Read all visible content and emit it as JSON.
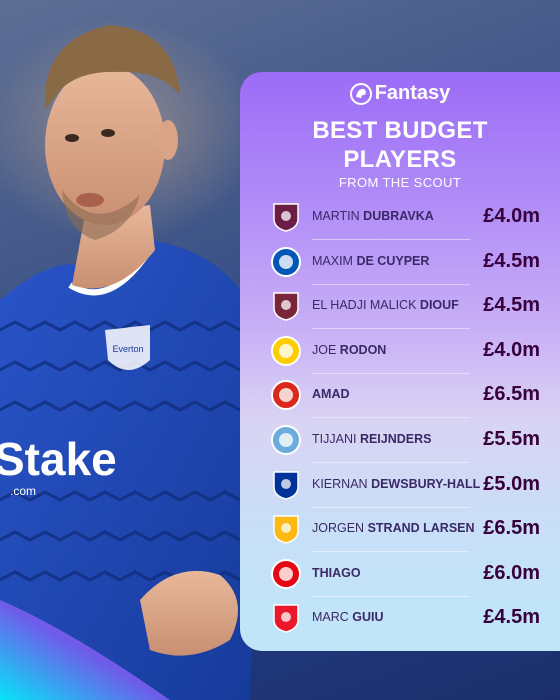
{
  "brand": {
    "label": "Fantasy"
  },
  "heading": {
    "line1": "BEST BUDGET",
    "line2": "PLAYERS",
    "subtitle": "FROM THE SCOUT"
  },
  "shirt": {
    "sponsor": "Stake",
    "sponsor_suffix": ".com",
    "club_text": "Everton"
  },
  "players": [
    {
      "first": "MARTIN",
      "last": "DUBRAVKA",
      "price": "£4.0m",
      "crest": "burnley-crest-icon",
      "color": "#6c1d45"
    },
    {
      "first": "MAXIM",
      "last": "DE CUYPER",
      "price": "£4.5m",
      "crest": "brighton-crest-icon",
      "color": "#0057b8"
    },
    {
      "first": "EL HADJI MALICK",
      "last": "DIOUF",
      "price": "£4.5m",
      "crest": "west-ham-crest-icon",
      "color": "#7a263a"
    },
    {
      "first": "JOE",
      "last": "RODON",
      "price": "£4.0m",
      "crest": "leeds-crest-icon",
      "color": "#ffcd00"
    },
    {
      "first": "",
      "last": "AMAD",
      "price": "£6.5m",
      "crest": "man-utd-crest-icon",
      "color": "#da291c"
    },
    {
      "first": "TIJJANI",
      "last": "REIJNDERS",
      "price": "£5.5m",
      "crest": "man-city-crest-icon",
      "color": "#6cabdd"
    },
    {
      "first": "KIERNAN",
      "last": "DEWSBURY-HALL",
      "price": "£5.0m",
      "crest": "everton-crest-icon",
      "color": "#003399"
    },
    {
      "first": "JORGEN",
      "last": "STRAND LARSEN",
      "price": "£6.5m",
      "crest": "wolves-crest-icon",
      "color": "#fdb913"
    },
    {
      "first": "",
      "last": "THIAGO",
      "price": "£6.0m",
      "crest": "brentford-crest-icon",
      "color": "#e30613"
    },
    {
      "first": "MARC",
      "last": "GUIU",
      "price": "£4.5m",
      "crest": "sunderland-crest-icon",
      "color": "#eb172b"
    }
  ]
}
